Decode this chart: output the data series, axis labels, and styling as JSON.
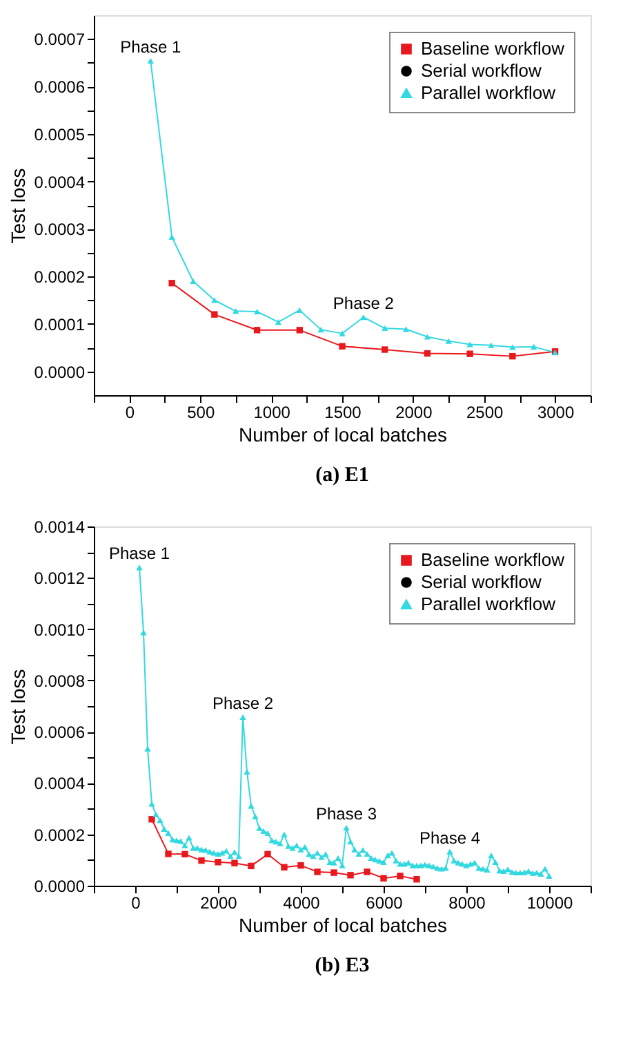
{
  "chart_data": [
    {
      "type": "line",
      "title": "(a) E1",
      "xlabel": "Number of local batches",
      "ylabel": "Test loss",
      "grid": false,
      "legend": "top right",
      "xlim": [
        -250,
        3250
      ],
      "ylim": [
        -5e-05,
        0.00075
      ],
      "xticks": [
        {
          "value": -250,
          "label": null
        },
        0,
        {
          "value": 250,
          "label": null
        },
        500,
        {
          "value": 750,
          "label": null
        },
        1000,
        {
          "value": 1250,
          "label": null
        },
        1500,
        {
          "value": 1750,
          "label": null
        },
        2000,
        {
          "value": 2250,
          "label": null
        },
        2500,
        {
          "value": 2750,
          "label": null
        },
        3000,
        {
          "value": 3250,
          "label": null
        }
      ],
      "yticks": [
        {
          "value": 0,
          "label": "0.0000"
        },
        {
          "value": 5e-05,
          "label": null
        },
        {
          "value": 0.0001,
          "label": "0.0001"
        },
        {
          "value": 0.00015,
          "label": null
        },
        {
          "value": 0.0002,
          "label": "0.0002"
        },
        {
          "value": 0.00025,
          "label": null
        },
        {
          "value": 0.0003,
          "label": "0.0003"
        },
        {
          "value": 0.00035,
          "label": null
        },
        {
          "value": 0.0004,
          "label": "0.0004"
        },
        {
          "value": 0.00045,
          "label": null
        },
        {
          "value": 0.0005,
          "label": "0.0005"
        },
        {
          "value": 0.00055,
          "label": null
        },
        {
          "value": 0.0006,
          "label": "0.0006"
        },
        {
          "value": 0.00065,
          "label": null
        },
        {
          "value": 0.0007,
          "label": "0.0007"
        }
      ],
      "series": [
        {
          "name": "Baseline workflow",
          "color": "#e8191e",
          "marker": "square",
          "x": [
            300,
            600,
            900,
            1200,
            1500,
            1800,
            2100,
            2400,
            2700,
            3000
          ],
          "values": [
            0.000186,
            0.00012,
            8.7e-05,
            8.7e-05,
            5.3e-05,
            4.6e-05,
            3.8e-05,
            3.7e-05,
            3.2e-05,
            4.2e-05
          ]
        },
        {
          "name": "Serial workflow",
          "color": "#000000",
          "marker": "circle"
        },
        {
          "name": "Parallel workflow",
          "color": "#33d9e0",
          "marker": "triangle",
          "x": [
            150,
            300,
            450,
            600,
            750,
            900,
            1050,
            1200,
            1350,
            1500,
            1650,
            1800,
            1950,
            2100,
            2250,
            2400,
            2550,
            2700,
            2850,
            3000
          ],
          "values": [
            0.000654,
            0.000283,
            0.00019,
            0.00015,
            0.000127,
            0.000126,
            0.000104,
            0.000129,
            8.8e-05,
            8e-05,
            0.000114,
            9.1e-05,
            8.9e-05,
            7.3e-05,
            6.4e-05,
            5.7e-05,
            5.5e-05,
            5.1e-05,
            5.2e-05,
            4e-05
          ]
        }
      ],
      "annotations": [
        {
          "text": "Phase 1",
          "x": 150,
          "y": 0.000654
        },
        {
          "text": "Phase 2",
          "x": 1650,
          "y": 0.000114
        }
      ]
    },
    {
      "type": "line",
      "title": "(b) E3",
      "xlabel": "Number of local batches",
      "ylabel": "Test loss",
      "grid": false,
      "legend": "top right",
      "xlim": [
        -1000,
        11000
      ],
      "ylim": [
        0,
        0.0014
      ],
      "xticks": [
        {
          "value": -1000,
          "label": null
        },
        0,
        {
          "value": 1000,
          "label": null
        },
        2000,
        {
          "value": 3000,
          "label": null
        },
        4000,
        {
          "value": 5000,
          "label": null
        },
        6000,
        {
          "value": 7000,
          "label": null
        },
        8000,
        {
          "value": 9000,
          "label": null
        },
        10000,
        {
          "value": 11000,
          "label": null
        }
      ],
      "yticks": [
        {
          "value": 0,
          "label": "0.0000"
        },
        {
          "value": 0.0001,
          "label": null
        },
        {
          "value": 0.0002,
          "label": "0.0002"
        },
        {
          "value": 0.0003,
          "label": null
        },
        {
          "value": 0.0004,
          "label": "0.0004"
        },
        {
          "value": 0.0005,
          "label": null
        },
        {
          "value": 0.0006,
          "label": "0.0006"
        },
        {
          "value": 0.0007,
          "label": null
        },
        {
          "value": 0.0008,
          "label": "0.0008"
        },
        {
          "value": 0.0009,
          "label": null
        },
        {
          "value": 0.001,
          "label": "0.0010"
        },
        {
          "value": 0.0011,
          "label": null
        },
        {
          "value": 0.0012,
          "label": "0.0012"
        },
        {
          "value": 0.0013,
          "label": null
        },
        {
          "value": 0.0014,
          "label": "0.0014"
        }
      ],
      "series": [
        {
          "name": "Baseline workflow",
          "color": "#e8191e",
          "marker": "square",
          "x": [
            400,
            800,
            1200,
            1600,
            2000,
            2400,
            2800,
            3200,
            3600,
            4000,
            4400,
            4800,
            5200,
            5600,
            6000,
            6400,
            6800
          ],
          "values": [
            0.000259,
            0.000124,
            0.000123,
            9.8e-05,
            9.2e-05,
            8.8e-05,
            7.7e-05,
            0.000123,
            7.2e-05,
            7.9e-05,
            5.4e-05,
            5.1e-05,
            4.1e-05,
            5.4e-05,
            2.9e-05,
            3.8e-05,
            2.5e-05
          ]
        },
        {
          "name": "Serial workflow",
          "color": "#000000",
          "marker": "circle"
        },
        {
          "name": "Parallel workflow",
          "color": "#33d9e0",
          "marker": "triangle",
          "x": [
            100,
            200,
            300,
            400,
            500,
            600,
            700,
            800,
            900,
            1000,
            1100,
            1200,
            1300,
            1400,
            1500,
            1600,
            1700,
            1800,
            1900,
            2000,
            2100,
            2200,
            2300,
            2400,
            2500,
            2600,
            2700,
            2800,
            2900,
            3000,
            3100,
            3200,
            3300,
            3400,
            3500,
            3600,
            3700,
            3800,
            3900,
            4000,
            4100,
            4200,
            4300,
            4400,
            4500,
            4600,
            4700,
            4800,
            4900,
            5000,
            5100,
            5200,
            5300,
            5400,
            5500,
            5600,
            5700,
            5800,
            5900,
            6000,
            6100,
            6200,
            6300,
            6400,
            6500,
            6600,
            6700,
            6800,
            6900,
            7000,
            7100,
            7200,
            7300,
            7400,
            7500,
            7600,
            7700,
            7800,
            7900,
            8000,
            8100,
            8200,
            8300,
            8400,
            8500,
            8600,
            8700,
            8800,
            8900,
            9000,
            9100,
            9200,
            9300,
            9400,
            9500,
            9600,
            9700,
            9800,
            9900,
            10000
          ],
          "values": [
            0.00124,
            0.000987,
            0.000534,
            0.000319,
            0.000278,
            0.000255,
            0.000221,
            0.000205,
            0.00018,
            0.000177,
            0.000174,
            0.000157,
            0.000187,
            0.000147,
            0.000147,
            0.000141,
            0.000139,
            0.000133,
            0.000128,
            0.000124,
            0.000128,
            0.000136,
            0.000115,
            0.000131,
            0.000115,
            0.000657,
            0.000444,
            0.000311,
            0.00027,
            0.000224,
            0.000213,
            0.000205,
            0.000177,
            0.000172,
            0.000165,
            0.0002,
            0.000154,
            0.000147,
            0.000157,
            0.000141,
            0.000151,
            0.000123,
            0.000115,
            0.000128,
            0.000111,
            0.000123,
            9.2e-05,
            9e-05,
            0.000108,
            7.9e-05,
            0.000226,
            0.000172,
            0.000141,
            0.000124,
            0.000139,
            0.000124,
            0.000108,
            0.000102,
            9.7e-05,
            9.2e-05,
            0.000118,
            0.000128,
            9.8e-05,
            8.5e-05,
            8.5e-05,
            9e-05,
            7.9e-05,
            7.9e-05,
            7.9e-05,
            8.2e-05,
            7.9e-05,
            7.5e-05,
            6.9e-05,
            6.6e-05,
            6.9e-05,
            0.000133,
            9.8e-05,
            9e-05,
            8.5e-05,
            7.9e-05,
            8.5e-05,
            9e-05,
            6.9e-05,
            6.6e-05,
            6.2e-05,
            0.000118,
            9.2e-05,
            5.9e-05,
            5.7e-05,
            6.4e-05,
            5.4e-05,
            5.1e-05,
            5.1e-05,
            5.2e-05,
            5.7e-05,
            4.9e-05,
            5.1e-05,
            4.6e-05,
            6.6e-05,
            3.8e-05
          ]
        }
      ],
      "annotations": [
        {
          "text": "Phase 1",
          "x": 100,
          "y": 0.00124
        },
        {
          "text": "Phase 2",
          "x": 2600,
          "y": 0.000657
        },
        {
          "text": "Phase 3",
          "x": 5100,
          "y": 0.000226
        },
        {
          "text": "Phase 4",
          "x": 7600,
          "y": 0.000133
        }
      ]
    }
  ]
}
